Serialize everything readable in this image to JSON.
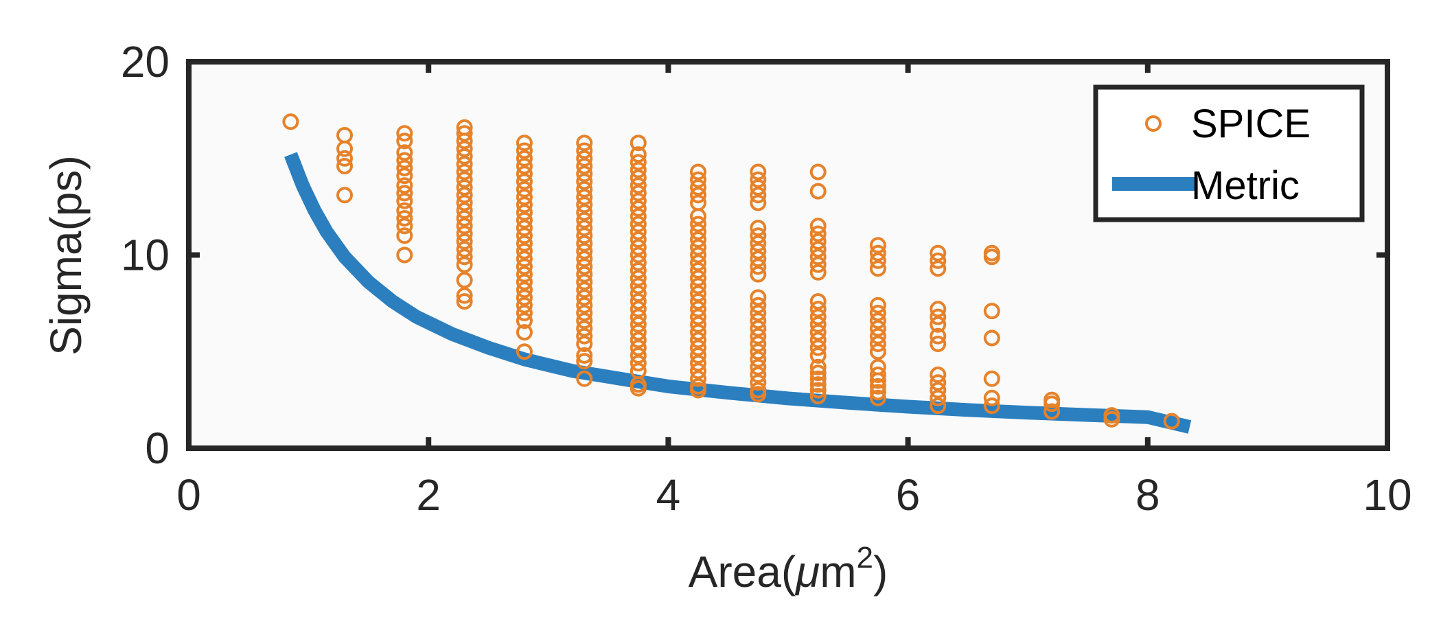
{
  "chart_data": {
    "type": "scatter",
    "title": "",
    "xlabel": "Area(μm²)",
    "xlabel_parts": {
      "main": "Area(",
      "mu": "μ",
      "unit": "m",
      "sup": "2",
      "close": ")"
    },
    "ylabel": "Sigma(ps)",
    "xlim": [
      0,
      10
    ],
    "ylim": [
      0,
      20
    ],
    "xticks": [
      "0",
      "2",
      "4",
      "6",
      "8",
      "10"
    ],
    "yticks": [
      "0",
      "10",
      "20"
    ],
    "grid": false,
    "legend_position": "top-right",
    "colors": {
      "spice": "#E6822A",
      "metric": "#2B7FBF",
      "axes": "#262626",
      "plot_bg": "#FAFAFA"
    },
    "series": [
      {
        "name": "SPICE",
        "kind": "markers",
        "groups": [
          {
            "x": 0.85,
            "y": [
              16.9
            ]
          },
          {
            "x": 1.3,
            "y": [
              16.2,
              15.5,
              15.0,
              14.6,
              13.1
            ]
          },
          {
            "x": 1.8,
            "y": [
              16.3,
              15.9,
              15.3,
              14.9,
              14.5,
              14.1,
              13.6,
              13.2,
              12.8,
              12.3,
              11.9,
              11.5,
              11.0,
              10.0
            ]
          },
          {
            "x": 2.3,
            "y": [
              16.6,
              16.3,
              15.9,
              15.5,
              15.1,
              14.7,
              14.3,
              13.9,
              13.5,
              13.1,
              12.7,
              12.3,
              11.9,
              11.5,
              11.1,
              10.7,
              10.3,
              9.9,
              9.5,
              8.7,
              7.9,
              7.6
            ]
          },
          {
            "x": 2.8,
            "y": [
              15.8,
              15.4,
              15.0,
              14.6,
              14.2,
              13.8,
              13.4,
              13.0,
              12.6,
              12.2,
              11.8,
              11.4,
              11.0,
              10.6,
              10.2,
              9.8,
              9.4,
              9.0,
              8.6,
              8.2,
              7.8,
              7.4,
              7.0,
              6.6,
              6.0,
              5.0
            ]
          },
          {
            "x": 3.3,
            "y": [
              15.8,
              15.4,
              15.0,
              14.6,
              14.2,
              13.8,
              13.4,
              13.0,
              12.6,
              12.2,
              11.8,
              11.4,
              11.0,
              10.6,
              10.2,
              9.8,
              9.4,
              9.0,
              8.6,
              8.2,
              7.8,
              7.4,
              7.0,
              6.6,
              6.2,
              5.8,
              5.4,
              4.8,
              4.5,
              3.6
            ]
          },
          {
            "x": 3.75,
            "y": [
              15.8,
              15.2,
              14.8,
              14.4,
              14.0,
              13.6,
              13.2,
              12.8,
              12.4,
              12.0,
              11.6,
              11.2,
              10.8,
              10.4,
              10.0,
              9.6,
              9.2,
              8.8,
              8.4,
              8.0,
              7.6,
              7.2,
              6.8,
              6.4,
              6.0,
              5.6,
              5.2,
              4.8,
              4.4,
              4.0,
              3.3,
              3.1
            ]
          },
          {
            "x": 4.25,
            "y": [
              14.3,
              13.9,
              13.5,
              13.1,
              12.7,
              12.0,
              11.6,
              11.2,
              10.8,
              10.4,
              10.0,
              9.6,
              9.2,
              8.8,
              8.4,
              8.0,
              7.6,
              7.2,
              6.8,
              6.4,
              6.0,
              5.6,
              5.2,
              4.8,
              4.4,
              4.0,
              3.6,
              3.2,
              3.0
            ]
          },
          {
            "x": 4.75,
            "y": [
              14.3,
              13.9,
              13.5,
              13.1,
              12.7,
              11.4,
              11.0,
              10.6,
              10.2,
              9.8,
              9.4,
              9.0,
              7.8,
              7.4,
              7.0,
              6.6,
              6.2,
              5.8,
              5.4,
              5.0,
              4.6,
              4.2,
              3.8,
              3.4,
              3.0,
              2.8
            ]
          },
          {
            "x": 5.25,
            "y": [
              14.3,
              13.3,
              11.5,
              11.1,
              10.7,
              10.3,
              9.9,
              9.5,
              9.1,
              7.6,
              7.2,
              6.8,
              6.4,
              6.0,
              5.6,
              5.2,
              4.8,
              4.2,
              3.9,
              3.6,
              3.3,
              3.0,
              2.7
            ]
          },
          {
            "x": 5.75,
            "y": [
              10.5,
              10.1,
              9.7,
              9.3,
              7.4,
              7.0,
              6.6,
              6.2,
              5.8,
              5.4,
              5.0,
              4.2,
              3.8,
              3.5,
              3.2,
              2.9,
              2.6
            ]
          },
          {
            "x": 6.25,
            "y": [
              10.1,
              9.7,
              9.3,
              7.2,
              6.8,
              6.4,
              5.8,
              5.4,
              3.8,
              3.4,
              3.0,
              2.6,
              2.2
            ]
          },
          {
            "x": 6.7,
            "y": [
              10.1,
              9.9,
              7.1,
              5.7,
              3.6,
              2.6,
              2.2
            ]
          },
          {
            "x": 7.2,
            "y": [
              2.5,
              2.3,
              1.9
            ]
          },
          {
            "x": 7.7,
            "y": [
              1.7,
              1.5
            ]
          },
          {
            "x": 8.2,
            "y": [
              1.4
            ]
          }
        ]
      },
      {
        "name": "Metric",
        "kind": "line",
        "x": [
          0.85,
          0.95,
          1.05,
          1.15,
          1.3,
          1.5,
          1.7,
          1.9,
          2.2,
          2.5,
          2.8,
          3.2,
          3.6,
          4.0,
          4.5,
          5.0,
          5.5,
          6.0,
          6.5,
          7.0,
          7.5,
          8.0,
          8.35
        ],
        "y": [
          15.2,
          13.6,
          12.3,
          11.2,
          9.9,
          8.6,
          7.6,
          6.8,
          5.9,
          5.2,
          4.6,
          4.0,
          3.6,
          3.2,
          2.87,
          2.58,
          2.35,
          2.15,
          1.98,
          1.84,
          1.72,
          1.61,
          1.1
        ]
      }
    ]
  }
}
